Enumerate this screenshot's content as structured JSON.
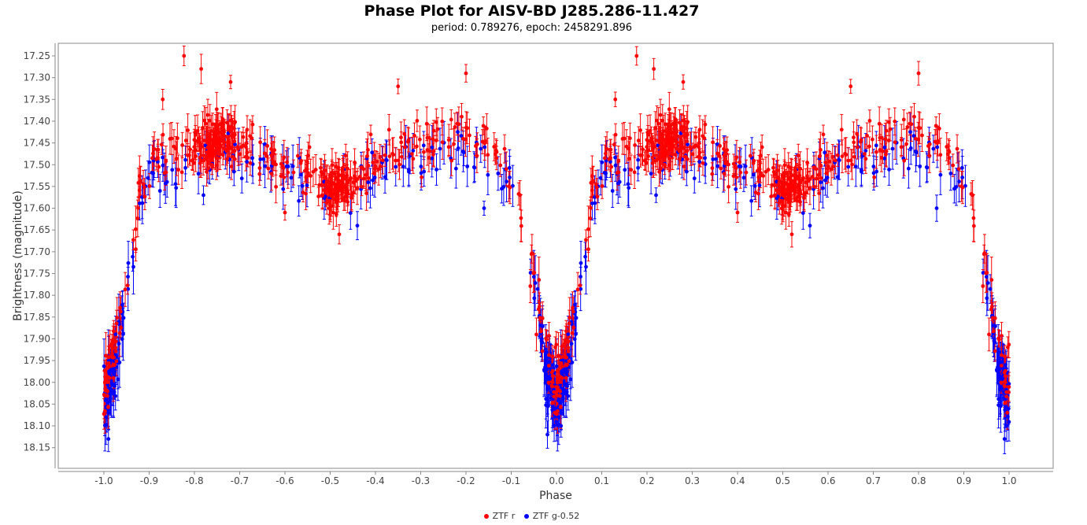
{
  "chart_data": {
    "type": "scatter",
    "title": "Phase Plot for AISV-BD J285.286-11.427",
    "subtitle": "period: 0.789276, epoch: 2458291.896",
    "xlabel": "Phase",
    "ylabel": "Brightness (magnitude)",
    "xlim": [
      -1.1,
      1.1
    ],
    "ylim": [
      18.2,
      17.22
    ],
    "y_inverted": true,
    "grid": false,
    "legend_position": "bottom-center",
    "x_ticks": [
      "-1.0",
      "-0.9",
      "-0.8",
      "-0.7",
      "-0.6",
      "-0.5",
      "-0.4",
      "-0.3",
      "-0.2",
      "-0.1",
      "0.0",
      "0.1",
      "0.2",
      "0.3",
      "0.4",
      "0.5",
      "0.6",
      "0.7",
      "0.8",
      "0.9",
      "1.0"
    ],
    "y_ticks": [
      "17.25",
      "17.30",
      "17.35",
      "17.40",
      "17.45",
      "17.50",
      "17.55",
      "17.60",
      "17.65",
      "17.70",
      "17.75",
      "17.80",
      "17.85",
      "17.90",
      "17.95",
      "18.00",
      "18.05",
      "18.10",
      "18.15"
    ],
    "series": [
      {
        "name": "ZTF r",
        "color": "#ff0000",
        "marker": "circle",
        "error_bars": true,
        "light_curve_knots": {
          "phase": [
            0.0,
            0.02,
            0.04,
            0.06,
            0.08,
            0.1,
            0.15,
            0.2,
            0.25,
            0.3,
            0.35,
            0.4,
            0.45,
            0.5,
            0.55,
            0.6,
            0.65,
            0.7,
            0.75,
            0.8,
            0.85,
            0.9,
            0.92,
            0.94,
            0.96,
            0.98,
            1.0
          ],
          "mag": [
            18.0,
            17.95,
            17.83,
            17.7,
            17.57,
            17.49,
            17.47,
            17.46,
            17.44,
            17.45,
            17.47,
            17.5,
            17.53,
            17.56,
            17.53,
            17.5,
            17.47,
            17.45,
            17.44,
            17.45,
            17.47,
            17.52,
            17.58,
            17.7,
            17.83,
            17.95,
            18.0
          ]
        },
        "outliers": [
          {
            "x": -0.823,
            "y": 17.25
          },
          {
            "x": 0.177,
            "y": 17.25
          },
          {
            "x": -0.785,
            "y": 17.28
          },
          {
            "x": 0.215,
            "y": 17.28
          },
          {
            "x": -0.2,
            "y": 17.29
          },
          {
            "x": 0.8,
            "y": 17.29
          },
          {
            "x": -0.72,
            "y": 17.31
          },
          {
            "x": 0.28,
            "y": 17.31
          },
          {
            "x": -0.35,
            "y": 17.32
          },
          {
            "x": 0.65,
            "y": 17.32
          },
          {
            "x": -0.87,
            "y": 17.35
          },
          {
            "x": 0.13,
            "y": 17.35
          },
          {
            "x": -0.48,
            "y": 17.66
          },
          {
            "x": 0.52,
            "y": 17.66
          },
          {
            "x": -0.6,
            "y": 17.61
          },
          {
            "x": 0.4,
            "y": 17.61
          }
        ]
      },
      {
        "name": "ZTF g-0.52",
        "color": "#0000ff",
        "marker": "circle",
        "error_bars": true,
        "light_curve_knots": {
          "phase": [
            0.0,
            0.02,
            0.04,
            0.06,
            0.08,
            0.1,
            0.15,
            0.2,
            0.25,
            0.3,
            0.35,
            0.4,
            0.45,
            0.5,
            0.55,
            0.6,
            0.65,
            0.7,
            0.75,
            0.8,
            0.85,
            0.9,
            0.92,
            0.94,
            0.96,
            0.98,
            1.0
          ],
          "mag": [
            18.04,
            17.98,
            17.86,
            17.73,
            17.6,
            17.52,
            17.5,
            17.49,
            17.47,
            17.48,
            17.5,
            17.53,
            17.55,
            17.57,
            17.55,
            17.52,
            17.5,
            17.48,
            17.47,
            17.48,
            17.5,
            17.55,
            17.61,
            17.73,
            17.86,
            17.98,
            18.04
          ]
        },
        "outliers": [
          {
            "x": -0.99,
            "y": 18.13
          },
          {
            "x": 0.99,
            "y": 18.13
          },
          {
            "x": -0.02,
            "y": 18.12
          },
          {
            "x": 0.01,
            "y": 18.1
          },
          {
            "x": -0.78,
            "y": 17.57
          },
          {
            "x": 0.22,
            "y": 17.57
          },
          {
            "x": -0.44,
            "y": 17.64
          },
          {
            "x": 0.56,
            "y": 17.64
          },
          {
            "x": -0.16,
            "y": 17.6
          },
          {
            "x": 0.84,
            "y": 17.6
          }
        ]
      }
    ]
  },
  "legend": {
    "items": [
      {
        "label": "ZTF r",
        "color": "#ff0000"
      },
      {
        "label": "ZTF g-0.52",
        "color": "#0000ff"
      }
    ]
  }
}
